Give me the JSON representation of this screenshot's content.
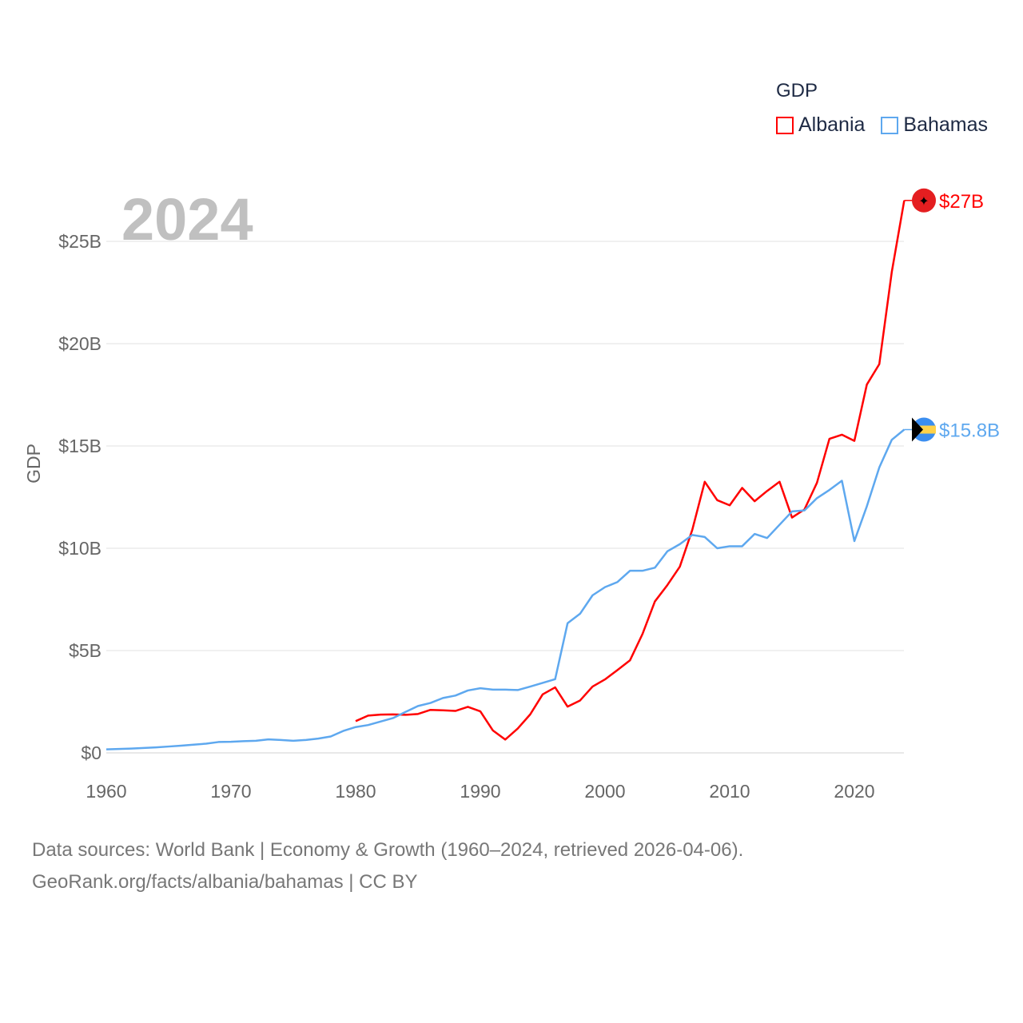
{
  "chart_data": {
    "type": "line",
    "title": "GDP",
    "ylabel": "GDP",
    "xlabel": "",
    "year_label": "2024",
    "xlim": [
      1960,
      2024
    ],
    "ylim": [
      0,
      27
    ],
    "x_ticks": [
      "1960",
      "1970",
      "1980",
      "1990",
      "2000",
      "2010",
      "2020"
    ],
    "y_ticks": [
      {
        "value": 0,
        "label": "$0"
      },
      {
        "value": 5,
        "label": "$5B"
      },
      {
        "value": 10,
        "label": "$10B"
      },
      {
        "value": 15,
        "label": "$15B"
      },
      {
        "value": 20,
        "label": "$20B"
      },
      {
        "value": 25,
        "label": "$25B"
      }
    ],
    "grid": true,
    "legend_position": "top-right",
    "series": [
      {
        "name": "Albania",
        "color": "#ff0000",
        "end_label": "$27B",
        "start_year": 1980,
        "values": [
          1.55,
          1.82,
          1.87,
          1.88,
          1.86,
          1.9,
          2.1,
          2.08,
          2.05,
          2.25,
          2.03,
          1.1,
          0.65,
          1.19,
          1.88,
          2.86,
          3.2,
          2.26,
          2.56,
          3.24,
          3.59,
          4.05,
          4.52,
          5.8,
          7.4,
          8.2,
          9.1,
          10.9,
          13.25,
          12.35,
          12.1,
          12.95,
          12.3,
          12.8,
          13.25,
          11.5,
          11.9,
          13.2,
          15.35,
          15.55,
          15.25,
          18.0,
          19.0,
          23.5,
          27.0
        ]
      },
      {
        "name": "Bahamas",
        "color": "#5ea8ef",
        "end_label": "$15.8B",
        "start_year": 1960,
        "values": [
          0.17,
          0.19,
          0.21,
          0.24,
          0.27,
          0.31,
          0.35,
          0.4,
          0.45,
          0.53,
          0.54,
          0.57,
          0.59,
          0.66,
          0.63,
          0.59,
          0.63,
          0.7,
          0.8,
          1.07,
          1.26,
          1.36,
          1.53,
          1.7,
          2.0,
          2.29,
          2.44,
          2.68,
          2.8,
          3.05,
          3.16,
          3.09,
          3.09,
          3.07,
          3.24,
          3.42,
          3.6,
          6.34,
          6.8,
          7.7,
          8.1,
          8.35,
          8.9,
          8.9,
          9.05,
          9.85,
          10.2,
          10.65,
          10.55,
          10.0,
          10.1,
          10.1,
          10.7,
          10.5,
          11.15,
          11.8,
          11.85,
          12.45,
          12.85,
          13.3,
          10.35,
          12.05,
          13.95,
          15.3,
          15.8
        ]
      }
    ]
  },
  "footer": {
    "line1": "Data sources: World Bank | Economy & Growth (1960–2024, retrieved 2026-04-06).",
    "line2": "GeoRank.org/facts/albania/bahamas | CC BY"
  }
}
